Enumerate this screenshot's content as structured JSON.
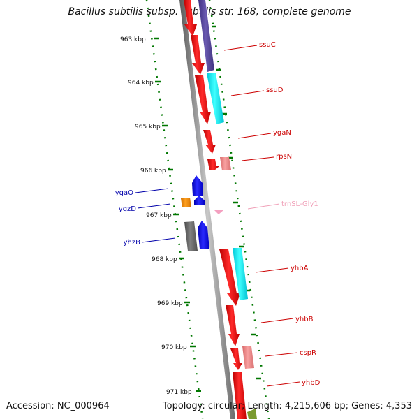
{
  "title": "Bacillus subtilis subsp. subtilis str. 168, complete genome",
  "footer": {
    "accession": "Accession: NC_000964",
    "topology": "Topology: circular; Length: 4,215,606 bp; Genes: 4,353"
  },
  "kbp_labels": [
    "963 kbp",
    "964 kbp",
    "965 kbp",
    "966 kbp",
    "967 kbp",
    "968 kbp",
    "969 kbp",
    "970 kbp",
    "971 kbp"
  ],
  "gene_labels": [
    {
      "text": "ssuC",
      "color": "#cc0000"
    },
    {
      "text": "ssuD",
      "color": "#cc0000"
    },
    {
      "text": "ygaN",
      "color": "#cc0000"
    },
    {
      "text": "rpsN",
      "color": "#cc0000"
    },
    {
      "text": "trnSL-Gly1",
      "color": "#f0a0b8"
    },
    {
      "text": "yhbA",
      "color": "#cc0000"
    },
    {
      "text": "yhbB",
      "color": "#cc0000"
    },
    {
      "text": "cspR",
      "color": "#cc0000"
    },
    {
      "text": "yhbD",
      "color": "#cc0000"
    },
    {
      "text": "ygaO",
      "color": "#0000aa"
    },
    {
      "text": "ygzD",
      "color": "#0000aa"
    },
    {
      "text": "yhzB",
      "color": "#0000aa"
    }
  ],
  "colors": {
    "forward_cds": "#ff0000",
    "reverse_cds": "#0000ff",
    "rrna_like": "#ff8c00",
    "purple_feature": "#55449a",
    "cyan_feature": "#00e5ee",
    "pink_feature": "#f08c8c",
    "grey_feature": "#666666",
    "trna": "#f4a0c0",
    "backbone": "#888888",
    "tick_green": "#007700"
  }
}
